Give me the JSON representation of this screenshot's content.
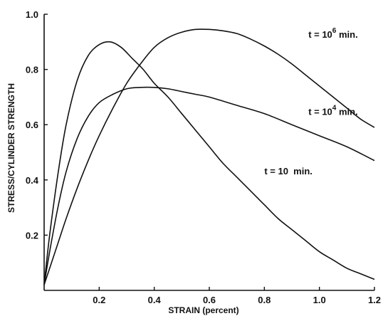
{
  "chart_data": {
    "type": "line",
    "xlabel": "STRAIN (percent)",
    "ylabel": "STRESS/CYLINDER STRENGTH",
    "xlim": [
      0,
      1.2
    ],
    "ylim": [
      0,
      1.0
    ],
    "xticks": [
      "0.2",
      "0.4",
      "0.6",
      "0.8",
      "1.0",
      "1.2"
    ],
    "yticks": [
      "0.2",
      "0.4",
      "0.6",
      "0.8",
      "1.0"
    ],
    "grid": false,
    "series": [
      {
        "name": "t = 10 min.",
        "x": [
          0,
          0.02,
          0.05,
          0.08,
          0.12,
          0.16,
          0.2,
          0.24,
          0.28,
          0.32,
          0.36,
          0.4,
          0.45,
          0.5,
          0.55,
          0.6,
          0.65,
          0.7,
          0.75,
          0.8,
          0.85,
          0.9,
          0.95,
          1.0,
          1.05,
          1.1,
          1.15,
          1.2
        ],
        "y": [
          0.02,
          0.2,
          0.42,
          0.6,
          0.76,
          0.85,
          0.89,
          0.9,
          0.88,
          0.84,
          0.8,
          0.75,
          0.7,
          0.64,
          0.58,
          0.52,
          0.46,
          0.41,
          0.36,
          0.31,
          0.26,
          0.22,
          0.18,
          0.14,
          0.11,
          0.08,
          0.06,
          0.04
        ]
      },
      {
        "name": "t = 10^4 min.",
        "x": [
          0,
          0.02,
          0.05,
          0.08,
          0.12,
          0.16,
          0.2,
          0.25,
          0.3,
          0.35,
          0.4,
          0.45,
          0.5,
          0.55,
          0.6,
          0.7,
          0.8,
          0.9,
          1.0,
          1.1,
          1.2
        ],
        "y": [
          0.02,
          0.14,
          0.3,
          0.43,
          0.55,
          0.63,
          0.68,
          0.71,
          0.73,
          0.735,
          0.735,
          0.73,
          0.72,
          0.71,
          0.7,
          0.67,
          0.64,
          0.6,
          0.56,
          0.52,
          0.47
        ]
      },
      {
        "name": "t = 10^6 min.",
        "x": [
          0,
          0.02,
          0.05,
          0.08,
          0.12,
          0.16,
          0.2,
          0.25,
          0.3,
          0.35,
          0.4,
          0.45,
          0.5,
          0.55,
          0.6,
          0.65,
          0.7,
          0.75,
          0.8,
          0.85,
          0.9,
          0.95,
          1.0,
          1.05,
          1.1,
          1.15,
          1.2
        ],
        "y": [
          0.02,
          0.08,
          0.17,
          0.26,
          0.37,
          0.47,
          0.56,
          0.66,
          0.75,
          0.82,
          0.88,
          0.915,
          0.935,
          0.945,
          0.945,
          0.94,
          0.93,
          0.91,
          0.885,
          0.855,
          0.82,
          0.78,
          0.74,
          0.7,
          0.66,
          0.62,
          0.59
        ]
      }
    ],
    "annotations": [
      {
        "base": "t = 10",
        "sup": "6",
        "suffix": " min.",
        "x": 0.96,
        "y": 0.915
      },
      {
        "base": "t = 10",
        "sup": "4",
        "suffix": " min.",
        "x": 0.96,
        "y": 0.635
      },
      {
        "base": "t = 10",
        "sup": "",
        "suffix": "  min.",
        "x": 0.8,
        "y": 0.42
      }
    ]
  }
}
